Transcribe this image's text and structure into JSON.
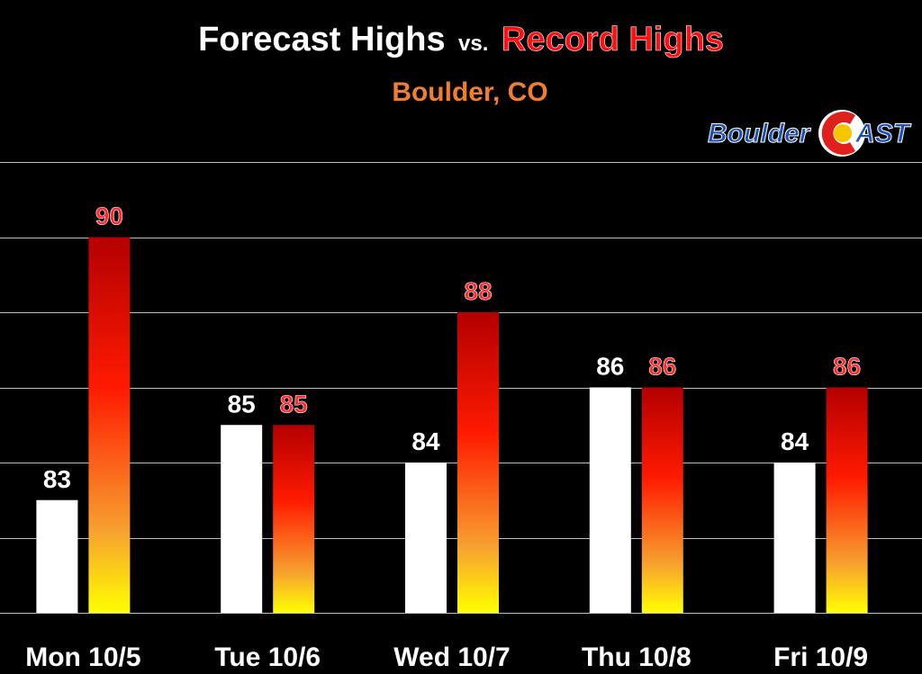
{
  "chart_data": {
    "type": "bar",
    "title_parts": {
      "forecast": "Forecast Highs",
      "vs": "vs.",
      "record": "Record Highs"
    },
    "subtitle": "Boulder, CO",
    "categories": [
      "Mon 10/5",
      "Tue 10/6",
      "Wed 10/7",
      "Thu 10/8",
      "Fri 10/9"
    ],
    "series": [
      {
        "name": "Forecast Highs",
        "values": [
          83,
          85,
          84,
          86,
          84
        ],
        "color": "#ffffff",
        "label_color": "#ffffff"
      },
      {
        "name": "Record Highs",
        "values": [
          90,
          85,
          88,
          86,
          86
        ],
        "color_gradient": [
          "#b40000",
          "#ff1a00",
          "#f7a030",
          "#ffff00"
        ],
        "label_color": "#ff2a2a"
      }
    ],
    "ylim": [
      80,
      92
    ],
    "grid": true,
    "colors": {
      "background": "#000000",
      "title_white": "#ffffff",
      "title_red": "#ff1010",
      "subtitle": "#f07e2e",
      "gridline": "#bfbfbf"
    }
  },
  "logo": {
    "text_left": "Boulder",
    "text_right": "AST",
    "colors": {
      "blue": "#1e50b4",
      "red": "#e0201c",
      "yellow": "#f7c600"
    }
  }
}
